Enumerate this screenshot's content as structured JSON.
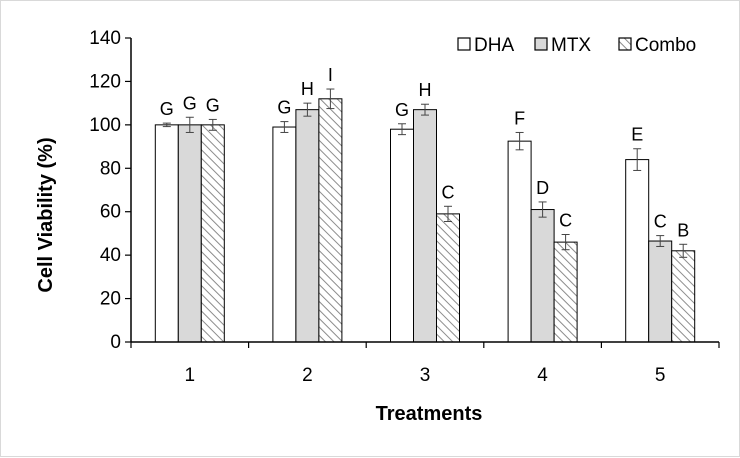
{
  "chart_data": {
    "type": "bar",
    "title": "",
    "xlabel": "Treatments",
    "ylabel": "Cell Viability (%)",
    "ylim": [
      0,
      140
    ],
    "yticks": [
      "0",
      "20",
      "40",
      "60",
      "80",
      "100",
      "120",
      "140"
    ],
    "categories": [
      "1",
      "2",
      "3",
      "4",
      "5"
    ],
    "legend_position": "top-right",
    "series": [
      {
        "name": "DHA",
        "fill": "#ffffff",
        "pattern": "none",
        "values": [
          100,
          99,
          98,
          92.5,
          84
        ],
        "errors": [
          0.8,
          2.5,
          2.5,
          4,
          5
        ],
        "letters": [
          "G",
          "G",
          "G",
          "F",
          "E"
        ]
      },
      {
        "name": "MTX",
        "fill": "#d9d9d9",
        "pattern": "none",
        "values": [
          100,
          107,
          107,
          61,
          46.5
        ],
        "errors": [
          3.5,
          3,
          2.5,
          3.5,
          2.5
        ],
        "letters": [
          "G",
          "H",
          "H",
          "D",
          "C"
        ]
      },
      {
        "name": "Combo",
        "fill": "#ffffff",
        "pattern": "diagonal-hatch",
        "values": [
          100,
          112,
          59,
          46,
          42
        ],
        "errors": [
          2.5,
          4.5,
          3.5,
          3.5,
          3
        ],
        "letters": [
          "G",
          "I",
          "C",
          "C",
          "B"
        ]
      }
    ],
    "grid": false
  }
}
